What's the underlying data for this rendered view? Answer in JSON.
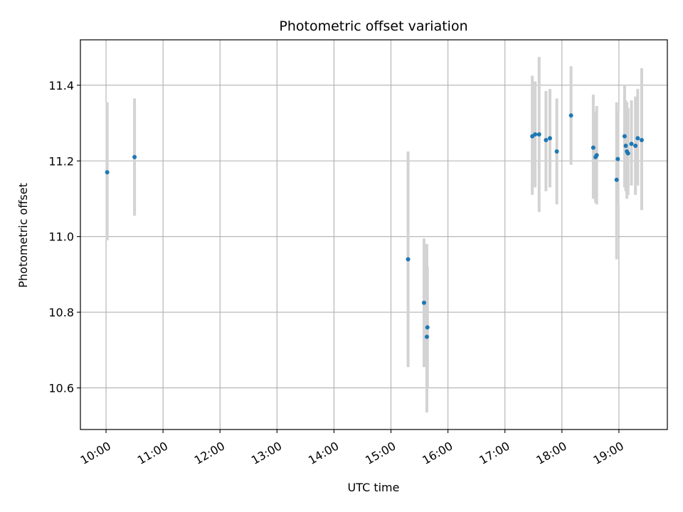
{
  "chart_data": {
    "type": "scatter",
    "title": "Photometric offset variation",
    "xlabel": "UTC time",
    "ylabel": "Photometric offset",
    "x_unit": "hours UTC",
    "xlim": [
      9.55,
      19.85
    ],
    "ylim": [
      10.49,
      11.52
    ],
    "x_ticks": [
      10,
      11,
      12,
      13,
      14,
      15,
      16,
      17,
      18,
      19
    ],
    "x_tick_labels": [
      "10:00",
      "11:00",
      "12:00",
      "13:00",
      "14:00",
      "15:00",
      "16:00",
      "17:00",
      "18:00",
      "19:00"
    ],
    "y_ticks": [
      10.6,
      10.8,
      11.0,
      11.2,
      11.4
    ],
    "y_tick_labels": [
      "10.6",
      "10.8",
      "11.0",
      "11.2",
      "11.4"
    ],
    "grid": true,
    "colors": {
      "point": "#1f77b4",
      "errorbar": "#d3d3d3",
      "grid": "#b0b0b0"
    },
    "series": [
      {
        "points": [
          {
            "x": 10.02,
            "y": 11.17,
            "lo": 10.99,
            "hi": 11.355
          },
          {
            "x": 10.5,
            "y": 11.21,
            "lo": 11.055,
            "hi": 11.365
          },
          {
            "x": 15.3,
            "y": 10.94,
            "lo": 10.655,
            "hi": 11.225
          },
          {
            "x": 15.58,
            "y": 10.825,
            "lo": 10.655,
            "hi": 10.995
          },
          {
            "x": 15.63,
            "y": 10.735,
            "lo": 10.535,
            "hi": 10.98
          },
          {
            "x": 15.64,
            "y": 10.76,
            "lo": 10.6,
            "hi": 10.92
          },
          {
            "x": 17.48,
            "y": 11.265,
            "lo": 11.11,
            "hi": 11.425
          },
          {
            "x": 17.53,
            "y": 11.27,
            "lo": 11.13,
            "hi": 11.41
          },
          {
            "x": 17.6,
            "y": 11.27,
            "lo": 11.065,
            "hi": 11.475
          },
          {
            "x": 17.72,
            "y": 11.255,
            "lo": 11.12,
            "hi": 11.385
          },
          {
            "x": 17.79,
            "y": 11.26,
            "lo": 11.13,
            "hi": 11.39
          },
          {
            "x": 17.91,
            "y": 11.225,
            "lo": 11.085,
            "hi": 11.365
          },
          {
            "x": 18.16,
            "y": 11.32,
            "lo": 11.19,
            "hi": 11.45
          },
          {
            "x": 18.55,
            "y": 11.235,
            "lo": 11.1,
            "hi": 11.375
          },
          {
            "x": 18.59,
            "y": 11.21,
            "lo": 11.09,
            "hi": 11.33
          },
          {
            "x": 18.61,
            "y": 11.215,
            "lo": 11.085,
            "hi": 11.345
          },
          {
            "x": 18.96,
            "y": 11.15,
            "lo": 10.94,
            "hi": 11.355
          },
          {
            "x": 18.98,
            "y": 11.205,
            "lo": 11.085,
            "hi": 11.33
          },
          {
            "x": 19.1,
            "y": 11.265,
            "lo": 11.13,
            "hi": 11.4
          },
          {
            "x": 19.12,
            "y": 11.24,
            "lo": 11.12,
            "hi": 11.36
          },
          {
            "x": 19.14,
            "y": 11.225,
            "lo": 11.1,
            "hi": 11.355
          },
          {
            "x": 19.16,
            "y": 11.22,
            "lo": 11.11,
            "hi": 11.34
          },
          {
            "x": 19.22,
            "y": 11.245,
            "lo": 11.135,
            "hi": 11.36
          },
          {
            "x": 19.29,
            "y": 11.24,
            "lo": 11.11,
            "hi": 11.37
          },
          {
            "x": 19.33,
            "y": 11.26,
            "lo": 11.135,
            "hi": 11.39
          },
          {
            "x": 19.4,
            "y": 11.255,
            "lo": 11.07,
            "hi": 11.445
          }
        ]
      }
    ]
  }
}
